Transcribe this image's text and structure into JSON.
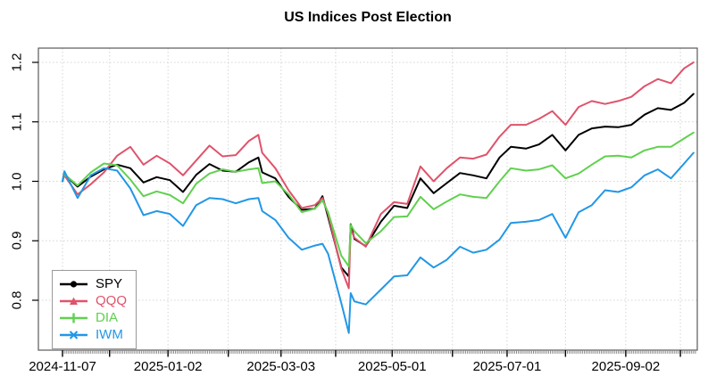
{
  "chart_data": {
    "type": "line",
    "title": "US Indices Post Election",
    "grid": {
      "visible": true,
      "style": "dotted",
      "color": "#d4d4d4"
    },
    "legend": {
      "position": "bottom-left",
      "border_color": "#9a9a9a"
    },
    "y_axis": {
      "ticks": [
        0.8,
        0.9,
        1.0,
        1.1,
        1.2
      ],
      "tick_labels": [
        "0.8",
        "0.9",
        "1.0",
        "1.1",
        "1.2"
      ],
      "ylim": [
        0.72,
        1.22
      ]
    },
    "x_axis": {
      "minor_tick_unit": "day",
      "ticks": [
        {
          "date": "2024-11-07",
          "label": "2024-11-07"
        },
        {
          "date": "2024-12-02",
          "label": ""
        },
        {
          "date": "2025-01-02",
          "label": "2025-01-02"
        },
        {
          "date": "2025-02-03",
          "label": ""
        },
        {
          "date": "2025-03-03",
          "label": "2025-03-03"
        },
        {
          "date": "2025-04-01",
          "label": ""
        },
        {
          "date": "2025-05-01",
          "label": "2025-05-01"
        },
        {
          "date": "2025-06-02",
          "label": ""
        },
        {
          "date": "2025-07-01",
          "label": "2025-07-01"
        },
        {
          "date": "2025-08-01",
          "label": ""
        },
        {
          "date": "2025-09-02",
          "label": "2025-09-02"
        },
        {
          "date": "2025-10-01",
          "label": ""
        }
      ]
    },
    "x": [
      "2024-11-07",
      "2024-11-08",
      "2024-11-15",
      "2024-11-22",
      "2024-11-29",
      "2024-12-06",
      "2024-12-13",
      "2024-12-20",
      "2024-12-27",
      "2025-01-03",
      "2025-01-10",
      "2025-01-17",
      "2025-01-24",
      "2025-01-31",
      "2025-02-07",
      "2025-02-14",
      "2025-02-19",
      "2025-02-21",
      "2025-02-28",
      "2025-03-07",
      "2025-03-14",
      "2025-03-21",
      "2025-03-25",
      "2025-03-28",
      "2025-04-04",
      "2025-04-08",
      "2025-04-09",
      "2025-04-11",
      "2025-04-17",
      "2025-04-25",
      "2025-05-02",
      "2025-05-09",
      "2025-05-16",
      "2025-05-23",
      "2025-05-30",
      "2025-06-06",
      "2025-06-13",
      "2025-06-20",
      "2025-06-27",
      "2025-07-03",
      "2025-07-11",
      "2025-07-18",
      "2025-07-25",
      "2025-08-01",
      "2025-08-08",
      "2025-08-15",
      "2025-08-22",
      "2025-08-29",
      "2025-09-05",
      "2025-09-12",
      "2025-09-19",
      "2025-09-26",
      "2025-10-03",
      "2025-10-08"
    ],
    "series": [
      {
        "name": "SPY",
        "color": "#000000",
        "marker": "circle",
        "values": [
          1.0,
          1.012,
          0.991,
          1.008,
          1.02,
          1.028,
          1.022,
          0.998,
          1.007,
          1.002,
          0.982,
          1.011,
          1.029,
          1.018,
          1.016,
          1.032,
          1.04,
          1.015,
          1.005,
          0.974,
          0.952,
          0.954,
          0.975,
          0.94,
          0.855,
          0.84,
          0.928,
          0.903,
          0.891,
          0.932,
          0.959,
          0.955,
          1.005,
          0.98,
          0.997,
          1.014,
          1.01,
          1.005,
          1.04,
          1.058,
          1.055,
          1.062,
          1.078,
          1.052,
          1.078,
          1.089,
          1.092,
          1.091,
          1.095,
          1.112,
          1.123,
          1.12,
          1.132,
          1.147
        ]
      },
      {
        "name": "QQQ",
        "color": "#DF536B",
        "marker": "triangle",
        "values": [
          1.0,
          1.01,
          0.978,
          0.995,
          1.015,
          1.043,
          1.058,
          1.028,
          1.043,
          1.03,
          1.01,
          1.035,
          1.06,
          1.042,
          1.044,
          1.068,
          1.078,
          1.048,
          1.022,
          0.985,
          0.955,
          0.96,
          0.972,
          0.945,
          0.853,
          0.82,
          0.92,
          0.905,
          0.89,
          0.945,
          0.965,
          0.962,
          1.025,
          1.0,
          1.022,
          1.04,
          1.038,
          1.045,
          1.075,
          1.095,
          1.095,
          1.105,
          1.118,
          1.095,
          1.125,
          1.135,
          1.13,
          1.135,
          1.142,
          1.16,
          1.172,
          1.165,
          1.19,
          1.2
        ]
      },
      {
        "name": "DIA",
        "color": "#61D04F",
        "marker": "plus",
        "values": [
          1.0,
          1.012,
          0.993,
          1.015,
          1.03,
          1.027,
          1.003,
          0.975,
          0.983,
          0.977,
          0.963,
          0.996,
          1.013,
          1.02,
          1.016,
          1.02,
          1.022,
          0.997,
          1.0,
          0.978,
          0.948,
          0.954,
          0.968,
          0.948,
          0.875,
          0.857,
          0.927,
          0.916,
          0.896,
          0.916,
          0.94,
          0.941,
          0.974,
          0.953,
          0.966,
          0.978,
          0.974,
          0.972,
          1.0,
          1.022,
          1.018,
          1.02,
          1.027,
          1.005,
          1.013,
          1.028,
          1.042,
          1.043,
          1.04,
          1.052,
          1.058,
          1.058,
          1.072,
          1.082
        ]
      },
      {
        "name": "IWM",
        "color": "#2297E6",
        "marker": "x",
        "values": [
          1.0,
          1.017,
          0.972,
          1.01,
          1.022,
          1.018,
          0.988,
          0.943,
          0.95,
          0.945,
          0.925,
          0.96,
          0.972,
          0.97,
          0.963,
          0.97,
          0.972,
          0.95,
          0.935,
          0.905,
          0.885,
          0.892,
          0.895,
          0.878,
          0.795,
          0.745,
          0.812,
          0.798,
          0.793,
          0.818,
          0.84,
          0.842,
          0.872,
          0.855,
          0.868,
          0.89,
          0.88,
          0.885,
          0.902,
          0.93,
          0.932,
          0.935,
          0.945,
          0.905,
          0.948,
          0.96,
          0.985,
          0.982,
          0.99,
          1.01,
          1.02,
          1.005,
          1.03,
          1.048
        ]
      }
    ]
  }
}
